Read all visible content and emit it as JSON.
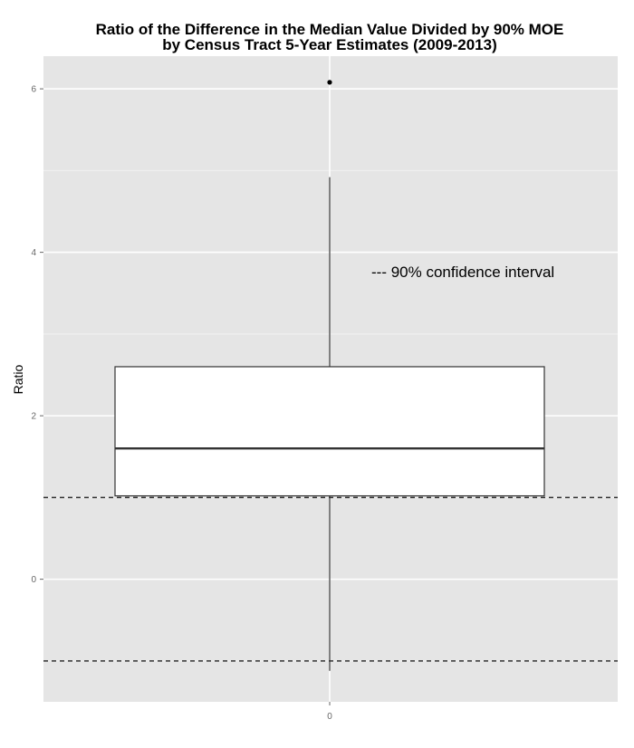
{
  "chart_data": {
    "type": "box",
    "title_line1": "Ratio of the Difference in the Median Value Divided by 90% MOE",
    "title_line2": "by Census Tract 5-Year Estimates (2009-2013)",
    "xlabel": "",
    "ylabel": "Ratio",
    "x_ticks": [
      "0"
    ],
    "y_ticks": [
      0,
      2,
      4,
      6
    ],
    "ylim": [
      -1.5,
      6.4
    ],
    "grid": true,
    "box": {
      "category": "0",
      "q1": 1.02,
      "median": 1.6,
      "q3": 2.6,
      "whisker_low": -1.12,
      "whisker_high": 4.92,
      "outliers": [
        6.08
      ]
    },
    "reference_lines": [
      1,
      -1
    ],
    "annotation": "--- 90% confidence interval",
    "colors": {
      "panel_bg": "#e5e5e5",
      "grid_major": "#ffffff",
      "grid_minor": "#f2f2f2",
      "box_fill": "#ffffff",
      "box_stroke": "#333333",
      "ref_line": "#333333"
    }
  }
}
